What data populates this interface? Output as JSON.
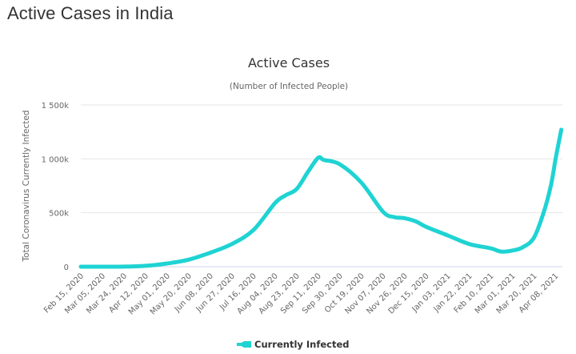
{
  "page": {
    "title": "Active Cases in India"
  },
  "chart_data": {
    "type": "line",
    "title": "Active Cases",
    "subtitle": "(Number of Infected People)",
    "xlabel": "",
    "ylabel": "Total Coronavirus Currently Infected",
    "ylim": [
      0,
      1500000
    ],
    "yticks": [
      0,
      500000,
      1000000,
      1500000
    ],
    "ytick_labels": [
      "0",
      "500k",
      "1 000k",
      "1 500k"
    ],
    "x_start": "Feb 15, 2020",
    "x_tick_interval_days": 19,
    "xtick_labels": [
      "Feb 15, 2020",
      "Mar 05, 2020",
      "Mar 24, 2020",
      "Apr 12, 2020",
      "May 01, 2020",
      "May 20, 2020",
      "Jun 08, 2020",
      "Jun 27, 2020",
      "Jul 16, 2020",
      "Aug 04, 2020",
      "Aug 23, 2020",
      "Sep 11, 2020",
      "Sep 30, 2020",
      "Oct 19, 2020",
      "Nov 07, 2020",
      "Nov 26, 2020",
      "Dec 15, 2020",
      "Jan 03, 2021",
      "Jan 22, 2021",
      "Feb 10, 2021",
      "Mar 01, 2021",
      "Mar 20, 2021",
      "Apr 08, 2021"
    ],
    "grid": true,
    "legend": {
      "position": "bottom-center",
      "entries": [
        "Currently Infected"
      ]
    },
    "series": [
      {
        "name": "Currently Infected",
        "color": "#1fd3d3",
        "day_offsets": [
          0,
          19,
          38,
          57,
          76,
          95,
          114,
          133,
          152,
          171,
          180,
          190,
          200,
          209,
          214,
          228,
          247,
          266,
          276,
          285,
          295,
          304,
          323,
          342,
          361,
          370,
          380,
          389,
          399,
          408,
          414,
          418,
          423
        ],
        "values": [
          3,
          30,
          480,
          8000,
          30000,
          65000,
          130000,
          210000,
          340000,
          590000,
          660000,
          720000,
          880000,
          1010000,
          990000,
          950000,
          780000,
          510000,
          460000,
          450000,
          420000,
          370000,
          290000,
          210000,
          170000,
          140000,
          150000,
          180000,
          270000,
          520000,
          760000,
          1000000,
          1270000
        ]
      }
    ]
  }
}
